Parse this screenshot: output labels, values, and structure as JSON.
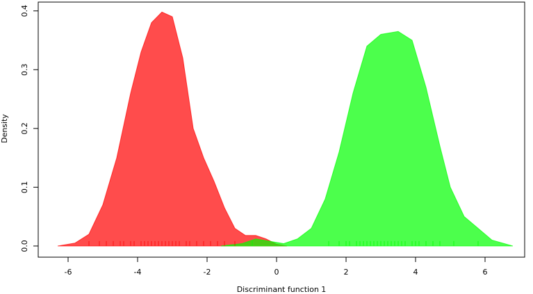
{
  "chart_data": {
    "type": "density",
    "x_label": "Discriminant function 1",
    "y_label": "Density",
    "xlim": [
      -6.86,
      7.14
    ],
    "ylim": [
      -0.019,
      0.415
    ],
    "xticks": [
      -6,
      -4,
      -2,
      0,
      2,
      4,
      6
    ],
    "yticks": [
      {
        "value": 0,
        "label": "0.0"
      },
      0.1,
      0.2,
      0.3,
      0.4
    ],
    "series": [
      {
        "color": "#ff0000",
        "x": [
          -6.3,
          -5.8,
          -5.4,
          -5.0,
          -4.6,
          -4.2,
          -3.9,
          -3.6,
          -3.3,
          -3.0,
          -2.7,
          -2.4,
          -2.1,
          -1.8,
          -1.5,
          -1.2,
          -0.9,
          -0.6,
          -0.3,
          0.0,
          0.3
        ],
        "values": [
          0,
          0.005,
          0.02,
          0.07,
          0.15,
          0.26,
          0.33,
          0.38,
          0.398,
          0.39,
          0.32,
          0.2,
          0.15,
          0.11,
          0.065,
          0.03,
          0.018,
          0.018,
          0.012,
          0.003,
          0
        ],
        "rug": [
          -5.4,
          -5.1,
          -4.9,
          -4.7,
          -4.5,
          -4.4,
          -4.2,
          -4.1,
          -3.9,
          -3.8,
          -3.7,
          -3.6,
          -3.5,
          -3.4,
          -3.3,
          -3.2,
          -3.1,
          -3.0,
          -2.9,
          -2.8,
          -2.6,
          -2.5,
          -2.3,
          -2.1,
          -1.9,
          -1.7,
          -1.5,
          -1.2
        ]
      },
      {
        "color": "#00ff00",
        "x": [
          -1.6,
          -1.0,
          -0.6,
          -0.2,
          0.2,
          0.6,
          1.0,
          1.4,
          1.8,
          2.2,
          2.6,
          3.0,
          3.5,
          3.9,
          4.3,
          4.7,
          5.0,
          5.4,
          5.8,
          6.2,
          6.8
        ],
        "values": [
          0,
          0.004,
          0.012,
          0.008,
          0.004,
          0.012,
          0.03,
          0.08,
          0.16,
          0.26,
          0.34,
          0.36,
          0.365,
          0.35,
          0.27,
          0.17,
          0.1,
          0.05,
          0.03,
          0.01,
          0
        ],
        "rug": [
          -0.7,
          1.5,
          1.8,
          2.0,
          2.1,
          2.3,
          2.4,
          2.5,
          2.6,
          2.7,
          2.8,
          2.9,
          3.0,
          3.1,
          3.2,
          3.3,
          3.4,
          3.5,
          3.6,
          3.7,
          3.9,
          4.0,
          4.1,
          4.3,
          4.5,
          4.7,
          5.1,
          5.8
        ]
      }
    ]
  }
}
